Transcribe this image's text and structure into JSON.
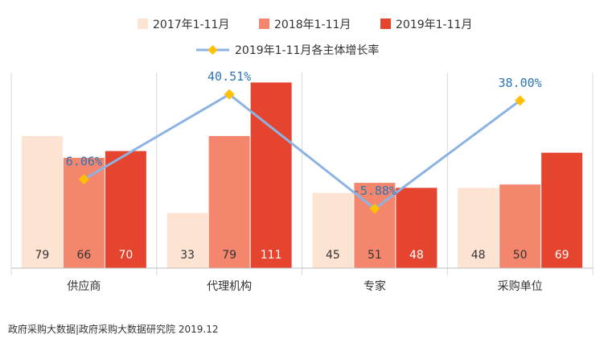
{
  "chart_data": {
    "type": "bar",
    "categories": [
      "供应商",
      "代理机构",
      "专家",
      "采购单位"
    ],
    "series": [
      {
        "name": "2017年1-11月",
        "values": [
          79,
          33,
          45,
          48
        ],
        "color": "#fde3d1",
        "label_color": "#333333"
      },
      {
        "name": "2018年1-11月",
        "values": [
          66,
          79,
          51,
          50
        ],
        "color": "#f4866e",
        "label_color": "#333333"
      },
      {
        "name": "2019年1-11月",
        "values": [
          70,
          111,
          48,
          69
        ],
        "color": "#e5442f",
        "label_color": "#ffffff"
      }
    ],
    "line_series": {
      "name": "2019年1-11月各主体增长率",
      "values": [
        6.06,
        40.51,
        -5.88,
        38.0
      ],
      "labels": [
        "6.06%",
        "40.51%",
        "-5.88%",
        "38.00%"
      ],
      "line_color": "#8db3e2",
      "marker_color": "#ffc000",
      "label_color": "#2e75b6"
    },
    "ylim": [
      0,
      117
    ],
    "line_ylim": [
      -30,
      49.4
    ],
    "legend_position": "top"
  },
  "source_text": "政府采购大数据|政府采购大数据研究院 2019.12"
}
